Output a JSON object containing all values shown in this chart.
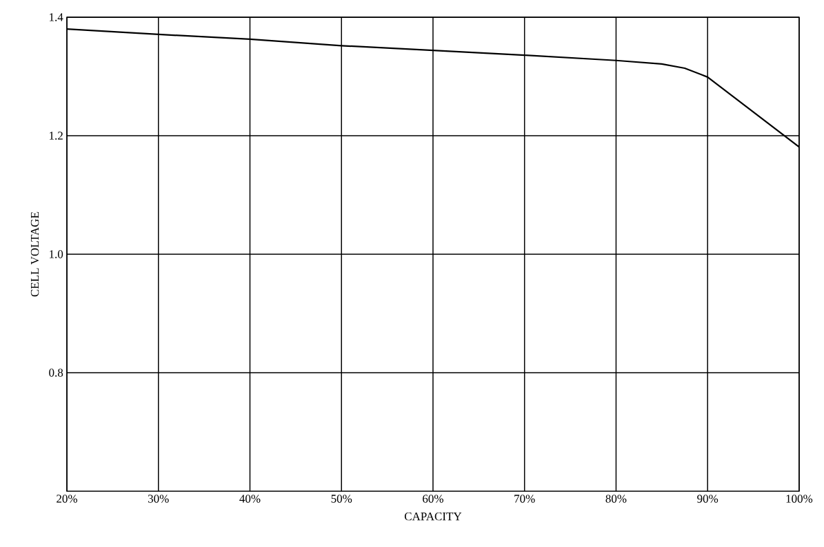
{
  "chart_data": {
    "type": "line",
    "xlabel": "CAPACITY",
    "ylabel": "CELL  VOLTAGE",
    "x": [
      20,
      30,
      40,
      50,
      60,
      70,
      80,
      85,
      87.5,
      90,
      100
    ],
    "series": [
      {
        "color": "#000000",
        "values": [
          1.38,
          1.371,
          1.363,
          1.352,
          1.344,
          1.336,
          1.327,
          1.321,
          1.314,
          1.299,
          1.181
        ]
      }
    ],
    "xlim": [
      20,
      100
    ],
    "ylim": [
      0.6,
      1.4
    ],
    "xticks": [
      {
        "value": 20,
        "label": "20%"
      },
      {
        "value": 30,
        "label": "30%"
      },
      {
        "value": 40,
        "label": "40%"
      },
      {
        "value": 50,
        "label": "50%"
      },
      {
        "value": 60,
        "label": "60%"
      },
      {
        "value": 70,
        "label": "70%"
      },
      {
        "value": 80,
        "label": "80%"
      },
      {
        "value": 90,
        "label": "90%"
      },
      {
        "value": 100,
        "label": "100%"
      }
    ],
    "yticks": [
      {
        "value": 0.8,
        "label": "0.8"
      },
      {
        "value": 1.0,
        "label": "1.0"
      },
      {
        "value": 1.2,
        "label": "1.2"
      },
      {
        "value": 1.4,
        "label": "1.4"
      }
    ],
    "grid": true,
    "marker": "none",
    "line_style": "solid"
  }
}
